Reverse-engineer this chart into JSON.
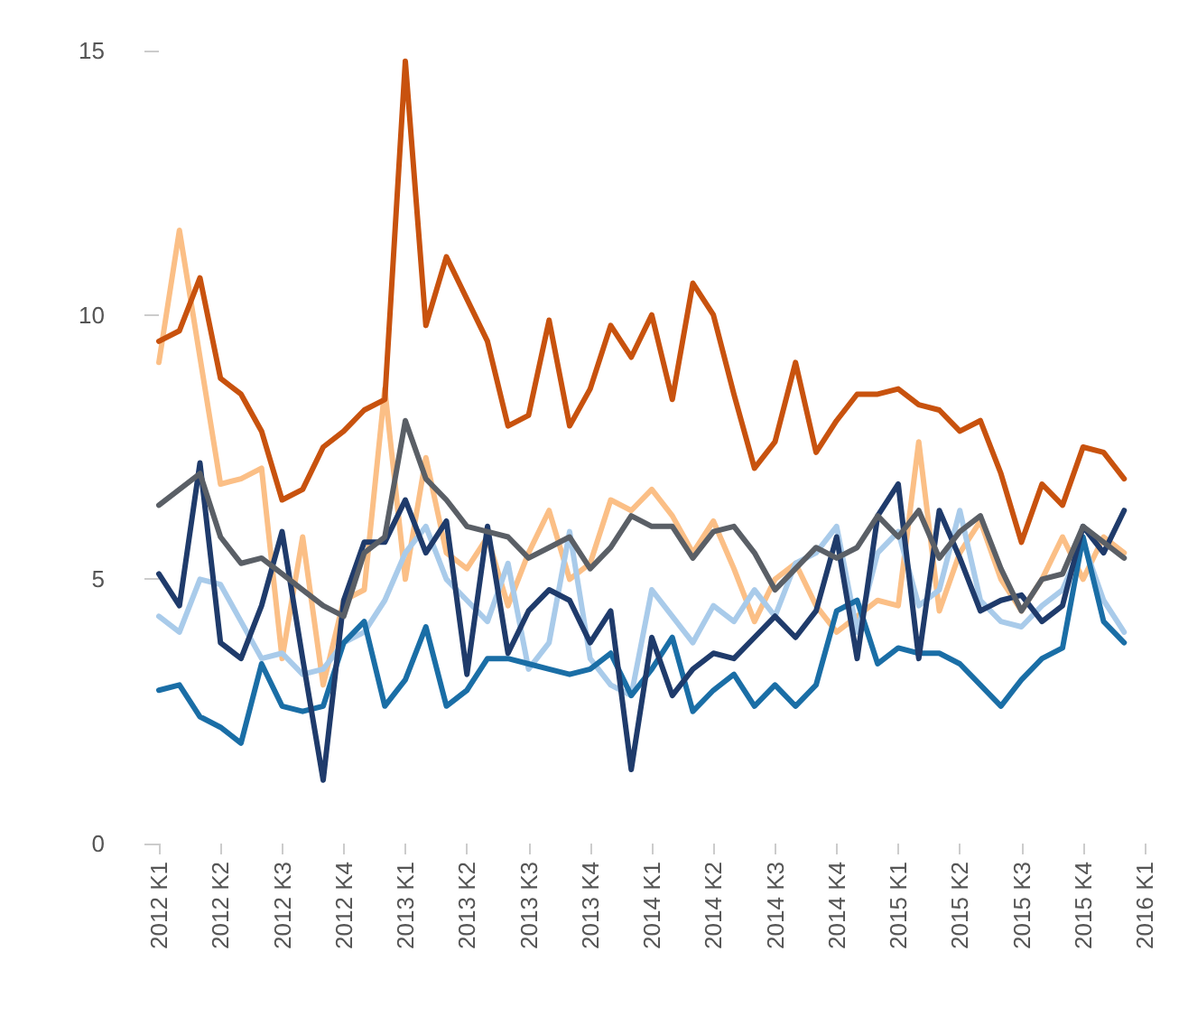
{
  "chart_data": {
    "type": "line",
    "marker": "none",
    "line_style": "solid",
    "categories": [
      "2012 K1",
      null,
      null,
      "2012 K2",
      null,
      null,
      "2012 K3",
      null,
      null,
      "2012 K4",
      null,
      null,
      "2013 K1",
      null,
      null,
      "2013 K2",
      null,
      null,
      "2013 K3",
      null,
      null,
      "2013 K4",
      null,
      null,
      "2014 K1",
      null,
      null,
      "2014 K2",
      null,
      null,
      "2014 K3",
      null,
      null,
      "2014 K4",
      null,
      null,
      "2015 K1",
      null,
      null,
      "2015 K2",
      null,
      null,
      "2015 K3",
      null,
      null,
      "2015 K4",
      null,
      null,
      "2016 K1"
    ],
    "ylim": [
      0,
      15
    ],
    "yticks": [
      0,
      5,
      10,
      15
    ],
    "series": [
      {
        "color": "#fbbf86",
        "values": [
          9.1,
          11.6,
          9.2,
          6.8,
          6.9,
          7.1,
          3.5,
          5.8,
          3.0,
          4.6,
          4.8,
          8.6,
          5.0,
          7.3,
          5.5,
          5.2,
          5.8,
          4.5,
          5.5,
          6.3,
          5.0,
          5.3,
          6.5,
          6.3,
          6.7,
          6.2,
          5.5,
          6.1,
          5.2,
          4.2,
          5.0,
          5.3,
          4.5,
          4.0,
          4.3,
          4.6,
          4.5,
          7.6,
          4.4,
          5.5,
          6.1,
          5.0,
          4.4,
          5.0,
          5.8,
          5.0,
          5.8,
          5.5,
          null
        ]
      },
      {
        "color": "#a9cbea",
        "values": [
          4.3,
          4.0,
          5.0,
          4.9,
          4.2,
          3.5,
          3.6,
          3.2,
          3.3,
          3.8,
          4.0,
          4.6,
          5.5,
          6.0,
          5.0,
          4.6,
          4.2,
          5.3,
          3.3,
          3.8,
          5.9,
          3.5,
          3.0,
          2.8,
          4.8,
          4.3,
          3.8,
          4.5,
          4.2,
          4.8,
          4.3,
          5.3,
          5.5,
          6.0,
          4.0,
          5.5,
          5.9,
          4.5,
          4.8,
          6.3,
          4.6,
          4.2,
          4.1,
          4.5,
          4.8,
          5.7,
          4.6,
          4.0,
          null
        ]
      },
      {
        "color": "#1a6ea6",
        "values": [
          2.9,
          3.0,
          2.4,
          2.2,
          1.9,
          3.4,
          2.6,
          2.5,
          2.6,
          3.8,
          4.2,
          2.6,
          3.1,
          4.1,
          2.6,
          2.9,
          3.5,
          3.5,
          3.4,
          3.3,
          3.2,
          3.3,
          3.6,
          2.8,
          3.3,
          3.9,
          2.5,
          2.9,
          3.2,
          2.6,
          3.0,
          2.6,
          3.0,
          4.4,
          4.6,
          3.4,
          3.7,
          3.6,
          3.6,
          3.4,
          3.0,
          2.6,
          3.1,
          3.5,
          3.7,
          5.8,
          4.2,
          3.8,
          null
        ]
      },
      {
        "color": "#1f3b6b",
        "values": [
          5.1,
          4.5,
          7.2,
          3.8,
          3.5,
          4.5,
          5.9,
          3.5,
          1.2,
          4.6,
          5.7,
          5.7,
          6.5,
          5.5,
          6.1,
          3.2,
          6.0,
          3.6,
          4.4,
          4.8,
          4.6,
          3.8,
          4.4,
          1.4,
          3.9,
          2.8,
          3.3,
          3.6,
          3.5,
          3.9,
          4.3,
          3.9,
          4.4,
          5.8,
          3.5,
          6.2,
          6.8,
          3.5,
          6.3,
          5.4,
          4.4,
          4.6,
          4.7,
          4.2,
          4.5,
          6.0,
          5.5,
          6.3,
          null
        ]
      },
      {
        "color": "#5a5f66",
        "values": [
          6.4,
          6.7,
          7.0,
          5.8,
          5.3,
          5.4,
          5.1,
          4.8,
          4.5,
          4.3,
          5.5,
          5.8,
          8.0,
          6.9,
          6.5,
          6.0,
          5.9,
          5.8,
          5.4,
          5.6,
          5.8,
          5.2,
          5.6,
          6.2,
          6.0,
          6.0,
          5.4,
          5.9,
          6.0,
          5.5,
          4.8,
          5.2,
          5.6,
          5.4,
          5.6,
          6.2,
          5.8,
          6.3,
          5.4,
          5.9,
          6.2,
          5.2,
          4.4,
          5.0,
          5.1,
          6.0,
          5.7,
          5.4,
          null
        ]
      },
      {
        "color": "#c8520e",
        "values": [
          9.5,
          9.7,
          10.7,
          8.8,
          8.5,
          7.8,
          6.5,
          6.7,
          7.5,
          7.8,
          8.2,
          8.4,
          14.8,
          9.8,
          11.1,
          10.3,
          9.5,
          7.9,
          8.1,
          9.9,
          7.9,
          8.6,
          9.8,
          9.2,
          10.0,
          8.4,
          10.6,
          10.0,
          8.5,
          7.1,
          7.6,
          9.1,
          7.4,
          8.0,
          8.5,
          8.5,
          8.6,
          8.3,
          8.2,
          7.8,
          8.0,
          7.0,
          5.7,
          6.8,
          6.4,
          7.5,
          7.4,
          6.9,
          null
        ]
      }
    ]
  }
}
